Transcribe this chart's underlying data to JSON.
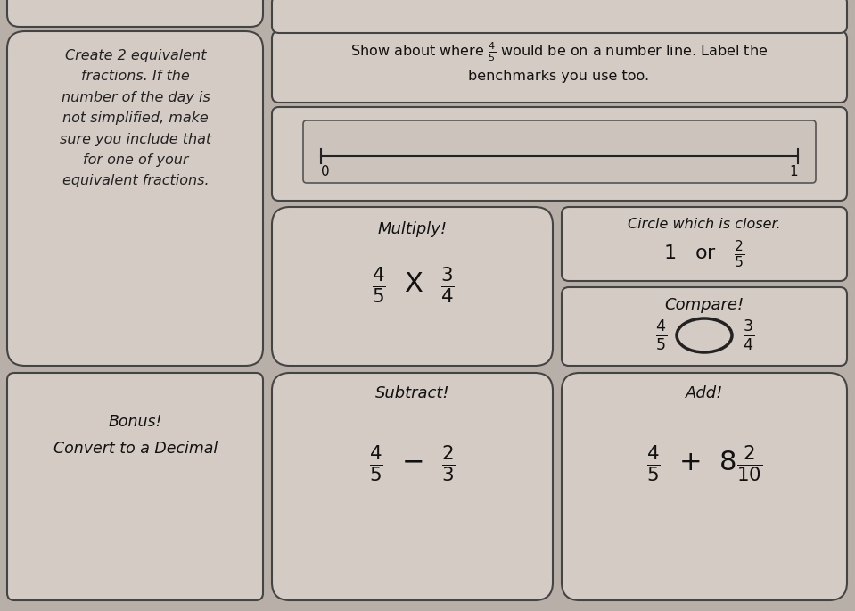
{
  "bg_color": "#b8b0a8",
  "panel_color": "#d4ccc4",
  "panel_edge": "#444444",
  "top_left_text": "Create 2 equivalent\nfractions. If the\nnumber of the day is\nnot simplified, make\nsure you include that\nfor one of your\nequivalent fractions.",
  "bonus_text": "Bonus!\nConvert to a Decimal",
  "multiply_title": "Multiply!",
  "circle_title": "Circle which is closer.",
  "compare_title": "Compare!",
  "subtract_title": "Subtract!",
  "add_title": "Add!"
}
